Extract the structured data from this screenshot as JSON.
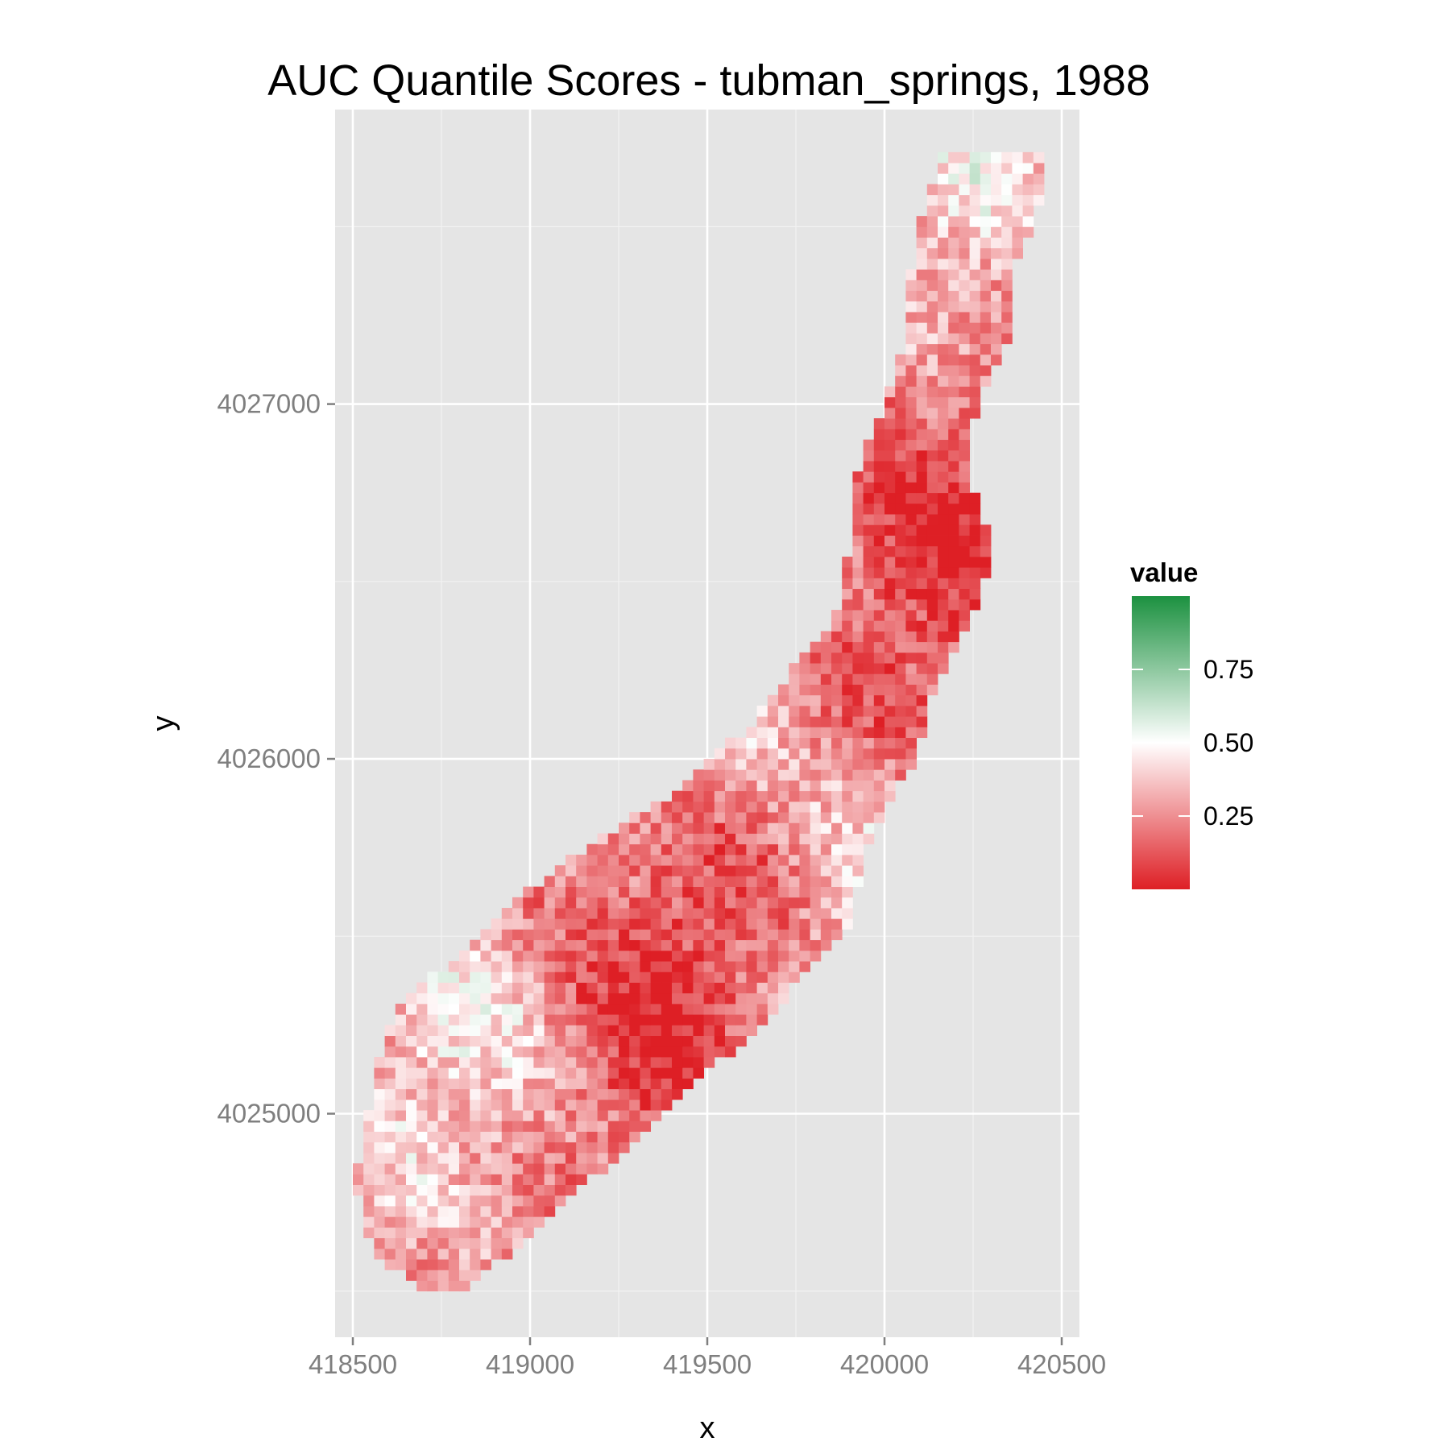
{
  "chart_data": {
    "type": "heatmap",
    "title": "AUC Quantile Scores - tubman_springs, 1988",
    "xlabel": "x",
    "ylabel": "y",
    "xlim": [
      418450,
      420550
    ],
    "ylim": [
      4024370,
      4027830
    ],
    "x_ticks": [
      418500,
      419000,
      419500,
      420000,
      420500
    ],
    "x_tick_labels": [
      "418500",
      "419000",
      "419500",
      "420000",
      "420500"
    ],
    "y_ticks": [
      4025000,
      4026000,
      4027000
    ],
    "y_tick_labels": [
      "4025000",
      "4026000",
      "4027000"
    ],
    "grid": true,
    "cell_size": 30,
    "legend": {
      "title": "value",
      "position": "right",
      "range": [
        0,
        1
      ],
      "breaks": [
        0.25,
        0.5,
        0.75
      ],
      "break_labels": [
        "0.25",
        "0.50",
        "0.75"
      ],
      "colors": {
        "low": "#de1f25",
        "mid": "#ffffff",
        "high": "#1c9140"
      }
    },
    "panel_background": "#e5e5e5",
    "region": {
      "description_points": [
        [
          4024500,
          418700,
          418780
        ],
        [
          4024600,
          418560,
          418920
        ],
        [
          4024700,
          418530,
          419040
        ],
        [
          4024800,
          418510,
          419140
        ],
        [
          4024900,
          418520,
          419260
        ],
        [
          4025000,
          418540,
          419370
        ],
        [
          4025100,
          418570,
          419470
        ],
        [
          4025200,
          418580,
          419580
        ],
        [
          4025300,
          418630,
          419680
        ],
        [
          4025400,
          418740,
          419770
        ],
        [
          4025500,
          418870,
          419870
        ],
        [
          4025600,
          418960,
          419900
        ],
        [
          4025700,
          419080,
          419920
        ],
        [
          4025800,
          419230,
          419960
        ],
        [
          4025900,
          419410,
          420010
        ],
        [
          4026000,
          419510,
          420080
        ],
        [
          4026100,
          419630,
          420100
        ],
        [
          4026200,
          419700,
          420130
        ],
        [
          4026300,
          419780,
          420180
        ],
        [
          4026400,
          419860,
          420230
        ],
        [
          4026500,
          419880,
          420270
        ],
        [
          4026600,
          419900,
          420280
        ],
        [
          4026700,
          419900,
          420260
        ],
        [
          4026800,
          419920,
          420220
        ],
        [
          4026900,
          419960,
          420230
        ],
        [
          4027000,
          420000,
          420250
        ],
        [
          4027100,
          420040,
          420290
        ],
        [
          4027200,
          420050,
          420340
        ],
        [
          4027300,
          420060,
          420360
        ],
        [
          4027400,
          420080,
          420360
        ],
        [
          4027500,
          420100,
          420410
        ],
        [
          4027600,
          420130,
          420430
        ],
        [
          4027700,
          420160,
          420450
        ]
      ]
    }
  }
}
